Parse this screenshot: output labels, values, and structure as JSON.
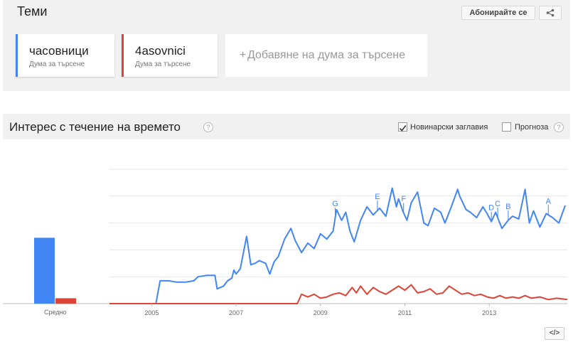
{
  "topics": {
    "title": "Теми",
    "subscribe_label": "Абонирайте се",
    "share_icon": "share-icon",
    "terms": [
      {
        "label": "часовници",
        "sub": "Дума за търсене",
        "color": "#4285f4"
      },
      {
        "label": "4asovnici",
        "sub": "Дума за търсене",
        "color": "#db4437"
      }
    ],
    "add_plus": "+",
    "add_label": "Добавяне на дума за търсене"
  },
  "interest": {
    "title": "Интерес с течение на времето",
    "help": "?",
    "news_label": "Новинарски заглавия",
    "news_checked": true,
    "forecast_label": "Прогноза",
    "forecast_checked": false,
    "embed_label": "</>"
  },
  "chart_data": {
    "type": "line",
    "x_ticks": [
      "2005",
      "2007",
      "2009",
      "2011",
      "2013"
    ],
    "average_label": "Средно",
    "averages": [
      {
        "name": "часовници",
        "value": 49,
        "color": "#4285f4"
      },
      {
        "name": "4asovnici",
        "value": 4,
        "color": "#db4437"
      }
    ],
    "x_range": [
      2004.0,
      2014.85
    ],
    "y_range": [
      0,
      100
    ],
    "grid": true,
    "news_markers": [
      {
        "label": "G",
        "x": 2009.35
      },
      {
        "label": "F",
        "x": 2010.97
      },
      {
        "label": "E",
        "x": 2010.35
      },
      {
        "label": "D",
        "x": 2013.05
      },
      {
        "label": "C",
        "x": 2013.2
      },
      {
        "label": "B",
        "x": 2013.45
      },
      {
        "label": "A",
        "x": 2014.4
      }
    ],
    "series": [
      {
        "name": "часовници",
        "color": "#4285f4",
        "points": [
          [
            2004.0,
            0
          ],
          [
            2005.1,
            0
          ],
          [
            2005.2,
            17
          ],
          [
            2005.4,
            17
          ],
          [
            2005.6,
            16
          ],
          [
            2005.8,
            16
          ],
          [
            2006.0,
            17
          ],
          [
            2006.1,
            20
          ],
          [
            2006.3,
            21
          ],
          [
            2006.5,
            21
          ],
          [
            2006.55,
            11
          ],
          [
            2006.7,
            13
          ],
          [
            2006.8,
            17
          ],
          [
            2006.9,
            19
          ],
          [
            2006.95,
            25
          ],
          [
            2007.0,
            22
          ],
          [
            2007.1,
            26
          ],
          [
            2007.25,
            50
          ],
          [
            2007.35,
            29
          ],
          [
            2007.45,
            30
          ],
          [
            2007.55,
            32
          ],
          [
            2007.7,
            30
          ],
          [
            2007.8,
            22
          ],
          [
            2007.9,
            31
          ],
          [
            2008.0,
            35
          ],
          [
            2008.15,
            48
          ],
          [
            2008.3,
            56
          ],
          [
            2008.4,
            47
          ],
          [
            2008.55,
            38
          ],
          [
            2008.7,
            45
          ],
          [
            2008.85,
            41
          ],
          [
            2009.0,
            52
          ],
          [
            2009.15,
            48
          ],
          [
            2009.3,
            54
          ],
          [
            2009.38,
            70
          ],
          [
            2009.5,
            62
          ],
          [
            2009.6,
            68
          ],
          [
            2009.7,
            54
          ],
          [
            2009.8,
            46
          ],
          [
            2009.95,
            62
          ],
          [
            2010.1,
            72
          ],
          [
            2010.25,
            66
          ],
          [
            2010.4,
            71
          ],
          [
            2010.55,
            65
          ],
          [
            2010.7,
            86
          ],
          [
            2010.8,
            72
          ],
          [
            2010.85,
            78
          ],
          [
            2010.95,
            69
          ],
          [
            2011.05,
            62
          ],
          [
            2011.15,
            75
          ],
          [
            2011.3,
            83
          ],
          [
            2011.45,
            60
          ],
          [
            2011.55,
            58
          ],
          [
            2011.7,
            71
          ],
          [
            2011.85,
            68
          ],
          [
            2011.95,
            60
          ],
          [
            2012.1,
            72
          ],
          [
            2012.25,
            85
          ],
          [
            2012.3,
            80
          ],
          [
            2012.45,
            70
          ],
          [
            2012.55,
            68
          ],
          [
            2012.7,
            64
          ],
          [
            2012.85,
            72
          ],
          [
            2012.95,
            67
          ],
          [
            2013.05,
            61
          ],
          [
            2013.15,
            68
          ],
          [
            2013.3,
            56
          ],
          [
            2013.45,
            62
          ],
          [
            2013.55,
            65
          ],
          [
            2013.7,
            63
          ],
          [
            2013.85,
            85
          ],
          [
            2013.95,
            60
          ],
          [
            2014.05,
            69
          ],
          [
            2014.2,
            57
          ],
          [
            2014.35,
            67
          ],
          [
            2014.5,
            64
          ],
          [
            2014.65,
            60
          ],
          [
            2014.8,
            73
          ]
        ]
      },
      {
        "name": "4asovnici",
        "color": "#db4437",
        "points": [
          [
            2004.0,
            0
          ],
          [
            2008.45,
            0
          ],
          [
            2008.55,
            7
          ],
          [
            2008.7,
            5
          ],
          [
            2008.85,
            7
          ],
          [
            2009.0,
            4
          ],
          [
            2009.15,
            5
          ],
          [
            2009.3,
            7
          ],
          [
            2009.45,
            8
          ],
          [
            2009.6,
            6
          ],
          [
            2009.75,
            12
          ],
          [
            2009.85,
            8
          ],
          [
            2009.95,
            13
          ],
          [
            2010.1,
            7
          ],
          [
            2010.25,
            12
          ],
          [
            2010.4,
            9
          ],
          [
            2010.55,
            7
          ],
          [
            2010.7,
            10
          ],
          [
            2010.85,
            13
          ],
          [
            2011.0,
            10
          ],
          [
            2011.15,
            14
          ],
          [
            2011.3,
            8
          ],
          [
            2011.45,
            9
          ],
          [
            2011.6,
            11
          ],
          [
            2011.75,
            7
          ],
          [
            2011.9,
            8
          ],
          [
            2012.05,
            13
          ],
          [
            2012.2,
            10
          ],
          [
            2012.35,
            7
          ],
          [
            2012.5,
            8
          ],
          [
            2012.65,
            6
          ],
          [
            2012.8,
            7
          ],
          [
            2012.95,
            5
          ],
          [
            2013.1,
            4
          ],
          [
            2013.25,
            6
          ],
          [
            2013.4,
            4
          ],
          [
            2013.55,
            5
          ],
          [
            2013.7,
            4
          ],
          [
            2013.85,
            6
          ],
          [
            2014.0,
            4
          ],
          [
            2014.2,
            5
          ],
          [
            2014.4,
            3
          ],
          [
            2014.6,
            4
          ],
          [
            2014.85,
            3
          ]
        ]
      }
    ]
  }
}
